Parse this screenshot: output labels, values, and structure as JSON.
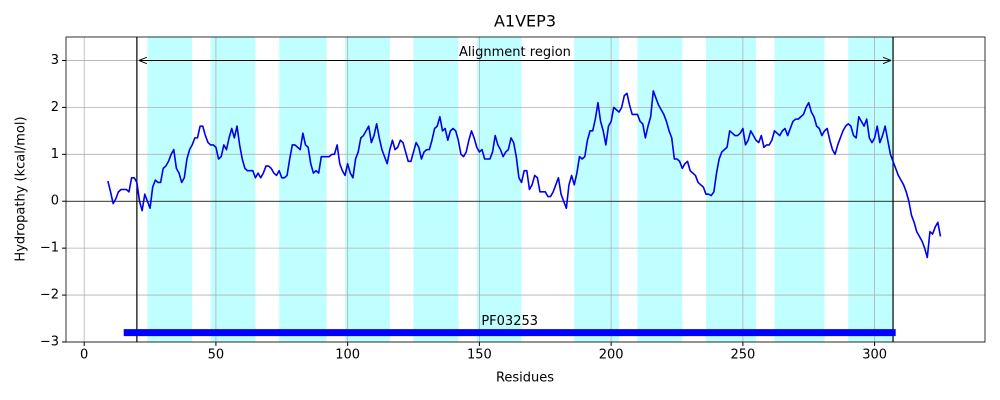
{
  "chart_data": {
    "type": "line",
    "title": "A1VEP3",
    "xlabel": "Residues",
    "ylabel": "Hydropathy (kcal/mol)",
    "x": [
      9,
      10,
      11,
      12,
      13,
      14,
      15,
      16,
      17,
      18,
      19,
      20,
      21,
      22,
      23,
      24,
      25,
      26,
      27,
      28,
      29,
      30,
      31,
      32,
      33,
      34,
      35,
      36,
      37,
      38,
      39,
      40,
      41,
      42,
      43,
      44,
      45,
      46,
      47,
      48,
      49,
      50,
      51,
      52,
      53,
      54,
      55,
      56,
      57,
      58,
      59,
      60,
      61,
      62,
      63,
      64,
      65,
      66,
      67,
      68,
      69,
      70,
      71,
      72,
      73,
      74,
      75,
      76,
      77,
      78,
      79,
      80,
      81,
      82,
      83,
      84,
      85,
      86,
      87,
      88,
      89,
      90,
      91,
      92,
      93,
      94,
      95,
      96,
      97,
      98,
      99,
      100,
      101,
      102,
      103,
      104,
      105,
      106,
      107,
      108,
      109,
      110,
      111,
      112,
      113,
      114,
      115,
      116,
      117,
      118,
      119,
      120,
      121,
      122,
      123,
      124,
      125,
      126,
      127,
      128,
      129,
      130,
      131,
      132,
      133,
      134,
      135,
      136,
      137,
      138,
      139,
      140,
      141,
      142,
      143,
      144,
      145,
      146,
      147,
      148,
      149,
      150,
      151,
      152,
      153,
      154,
      155,
      156,
      157,
      158,
      159,
      160,
      161,
      162,
      163,
      164,
      165,
      166,
      167,
      168,
      169,
      170,
      171,
      172,
      173,
      174,
      175,
      176,
      177,
      178,
      179,
      180,
      181,
      182,
      183,
      184,
      185,
      186,
      187,
      188,
      189,
      190,
      191,
      192,
      193,
      194,
      195,
      196,
      197,
      198,
      199,
      200,
      201,
      202,
      203,
      204,
      205,
      206,
      207,
      208,
      209,
      210,
      211,
      212,
      213,
      214,
      215,
      216,
      217,
      218,
      219,
      220,
      221,
      222,
      223,
      224,
      225,
      226,
      227,
      228,
      229,
      230,
      231,
      232,
      233,
      234,
      235,
      236,
      237,
      238,
      239,
      240,
      241,
      242,
      243,
      244,
      245,
      246,
      247,
      248,
      249,
      250,
      251,
      252,
      253,
      254,
      255,
      256,
      257,
      258,
      259,
      260,
      261,
      262,
      263,
      264,
      265,
      266,
      267,
      268,
      269,
      270,
      271,
      272,
      273,
      274,
      275,
      276,
      277,
      278,
      279,
      280,
      281,
      282,
      283,
      284,
      285,
      286,
      287,
      288,
      289,
      290,
      291,
      292,
      293,
      294,
      295,
      296,
      297,
      298,
      299,
      300,
      301,
      302,
      303,
      304,
      305,
      306,
      307,
      308,
      309,
      310,
      311,
      312,
      313,
      314,
      315,
      316,
      317,
      318,
      319,
      320,
      321,
      322,
      323,
      324,
      325
    ],
    "values": [
      0.43,
      0.2,
      -0.05,
      0.05,
      0.2,
      0.25,
      0.25,
      0.25,
      0.2,
      0.5,
      0.5,
      0.4,
      0.0,
      -0.2,
      0.15,
      0.0,
      -0.15,
      0.3,
      0.45,
      0.4,
      0.4,
      0.7,
      0.75,
      0.85,
      1.0,
      1.1,
      0.7,
      0.6,
      0.4,
      0.5,
      0.9,
      1.1,
      1.2,
      1.35,
      1.35,
      1.6,
      1.6,
      1.4,
      1.25,
      1.2,
      1.2,
      1.15,
      0.9,
      0.95,
      1.2,
      1.1,
      1.35,
      1.55,
      1.35,
      1.6,
      1.2,
      0.9,
      0.7,
      0.65,
      0.65,
      0.65,
      0.5,
      0.6,
      0.5,
      0.6,
      0.75,
      0.75,
      0.7,
      0.6,
      0.55,
      0.65,
      0.5,
      0.5,
      0.55,
      0.9,
      1.2,
      1.2,
      1.15,
      1.1,
      1.45,
      1.2,
      1.15,
      0.8,
      0.6,
      0.65,
      0.6,
      0.95,
      0.95,
      0.95,
      0.95,
      1.0,
      1.0,
      1.2,
      0.8,
      0.65,
      0.55,
      0.8,
      0.6,
      0.5,
      0.9,
      1.05,
      1.35,
      1.4,
      1.5,
      1.6,
      1.25,
      1.4,
      1.65,
      1.35,
      1.1,
      0.95,
      0.8,
      1.1,
      1.3,
      1.1,
      1.15,
      1.3,
      1.25,
      1.05,
      0.85,
      0.85,
      1.05,
      1.25,
      1.15,
      0.9,
      1.05,
      1.1,
      1.1,
      1.3,
      1.55,
      1.6,
      1.8,
      1.5,
      1.55,
      1.3,
      1.5,
      1.55,
      1.5,
      1.3,
      1.0,
      0.95,
      1.05,
      1.3,
      1.5,
      1.35,
      1.15,
      1.05,
      1.1,
      0.9,
      0.9,
      0.9,
      1.05,
      1.4,
      1.2,
      1.1,
      0.95,
      1.05,
      1.1,
      1.35,
      1.25,
      0.95,
      0.5,
      0.4,
      0.65,
      0.65,
      0.25,
      0.35,
      0.55,
      0.5,
      0.2,
      0.2,
      0.2,
      0.1,
      0.1,
      0.2,
      0.35,
      0.5,
      0.15,
      0.0,
      -0.15,
      0.35,
      0.55,
      0.35,
      0.6,
      0.95,
      0.9,
      0.95,
      1.3,
      1.5,
      1.5,
      1.75,
      2.1,
      1.7,
      1.5,
      1.2,
      1.6,
      1.7,
      2.0,
      1.95,
      1.9,
      2.0,
      2.25,
      2.3,
      2.05,
      1.85,
      1.85,
      1.85,
      1.7,
      1.65,
      1.35,
      1.6,
      1.8,
      2.35,
      2.2,
      2.05,
      1.95,
      1.85,
      1.7,
      1.5,
      1.35,
      0.9,
      0.9,
      0.85,
      0.7,
      0.8,
      0.85,
      0.65,
      0.6,
      0.55,
      0.4,
      0.35,
      0.3,
      0.15,
      0.15,
      0.12,
      0.2,
      0.6,
      0.9,
      1.05,
      1.1,
      1.15,
      1.5,
      1.45,
      1.4,
      1.4,
      1.45,
      1.55,
      1.2,
      1.3,
      1.5,
      1.4,
      1.3,
      1.25,
      1.4,
      1.15,
      1.2,
      1.2,
      1.3,
      1.5,
      1.45,
      1.4,
      1.5,
      1.55,
      1.4,
      1.55,
      1.7,
      1.75,
      1.75,
      1.8,
      1.85,
      2.0,
      2.1,
      1.9,
      1.8,
      1.6,
      1.55,
      1.4,
      1.5,
      1.55,
      1.3,
      1.1,
      1.0,
      1.2,
      1.35,
      1.5,
      1.6,
      1.65,
      1.6,
      1.4,
      1.35,
      1.8,
      1.7,
      1.6,
      1.75,
      1.35,
      1.25,
      1.35,
      1.6,
      1.25,
      1.4,
      1.6,
      1.3,
      1.0,
      0.85,
      0.7,
      0.55,
      0.45,
      0.35,
      0.2,
      0.0,
      -0.3,
      -0.45,
      -0.65,
      -0.75,
      -0.85,
      -1.0,
      -1.2,
      -0.65,
      -0.7,
      -0.55,
      -0.45,
      -0.75
    ],
    "color": "#0000ee",
    "xlim": [
      -6.9,
      341.9
    ],
    "ylim": [
      -3,
      3.5
    ],
    "xticks": [
      0,
      50,
      100,
      150,
      200,
      250,
      300
    ],
    "yticks": [
      {
        "value": -3,
        "label": "−3"
      },
      {
        "value": -2,
        "label": "−2"
      },
      {
        "value": -1,
        "label": "−1"
      },
      0,
      1,
      2,
      3
    ],
    "grid": true,
    "regions": [
      [
        24,
        41
      ],
      [
        48,
        65
      ],
      [
        74,
        92
      ],
      [
        99,
        116
      ],
      [
        125,
        142
      ],
      [
        149,
        166
      ],
      [
        186,
        203
      ],
      [
        210,
        227
      ],
      [
        236,
        255
      ],
      [
        262,
        281
      ],
      [
        290,
        307
      ]
    ],
    "region_color": "#bfffff",
    "alignment_region": {
      "start": 20,
      "end": 307,
      "y": 3,
      "label": "Alignment region"
    },
    "domain": {
      "start": 15,
      "end": 308,
      "y": -2.8,
      "label": "PF03253",
      "color": "#0000ff"
    }
  }
}
